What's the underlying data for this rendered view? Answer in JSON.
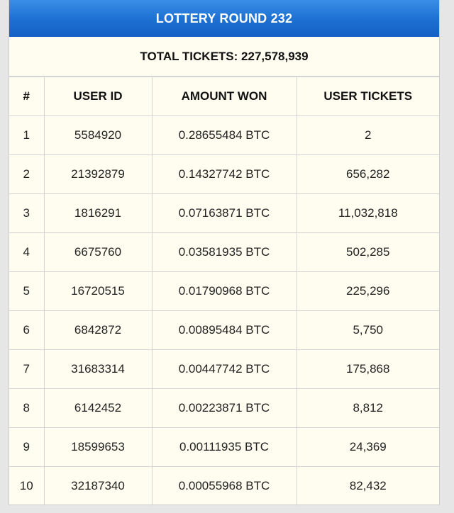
{
  "title": "LOTTERY ROUND 232",
  "total_label": "TOTAL TICKETS: 227,578,939",
  "columns": [
    "#",
    "USER ID",
    "AMOUNT WON",
    "USER TICKETS"
  ],
  "rows": [
    {
      "rank": "1",
      "user_id": "5584920",
      "amount": "0.28655484 BTC",
      "tickets": "2"
    },
    {
      "rank": "2",
      "user_id": "21392879",
      "amount": "0.14327742 BTC",
      "tickets": "656,282"
    },
    {
      "rank": "3",
      "user_id": "1816291",
      "amount": "0.07163871 BTC",
      "tickets": "11,032,818"
    },
    {
      "rank": "4",
      "user_id": "6675760",
      "amount": "0.03581935 BTC",
      "tickets": "502,285"
    },
    {
      "rank": "5",
      "user_id": "16720515",
      "amount": "0.01790968 BTC",
      "tickets": "225,296"
    },
    {
      "rank": "6",
      "user_id": "6842872",
      "amount": "0.00895484 BTC",
      "tickets": "5,750"
    },
    {
      "rank": "7",
      "user_id": "31683314",
      "amount": "0.00447742 BTC",
      "tickets": "175,868"
    },
    {
      "rank": "8",
      "user_id": "6142452",
      "amount": "0.00223871 BTC",
      "tickets": "8,812"
    },
    {
      "rank": "9",
      "user_id": "18599653",
      "amount": "0.00111935 BTC",
      "tickets": "24,369"
    },
    {
      "rank": "10",
      "user_id": "32187340",
      "amount": "0.00055968 BTC",
      "tickets": "82,432"
    }
  ],
  "colors": {
    "header_blue": "#1c6fd1",
    "panel_bg": "#fffdf0",
    "border": "#d4d4d4"
  }
}
